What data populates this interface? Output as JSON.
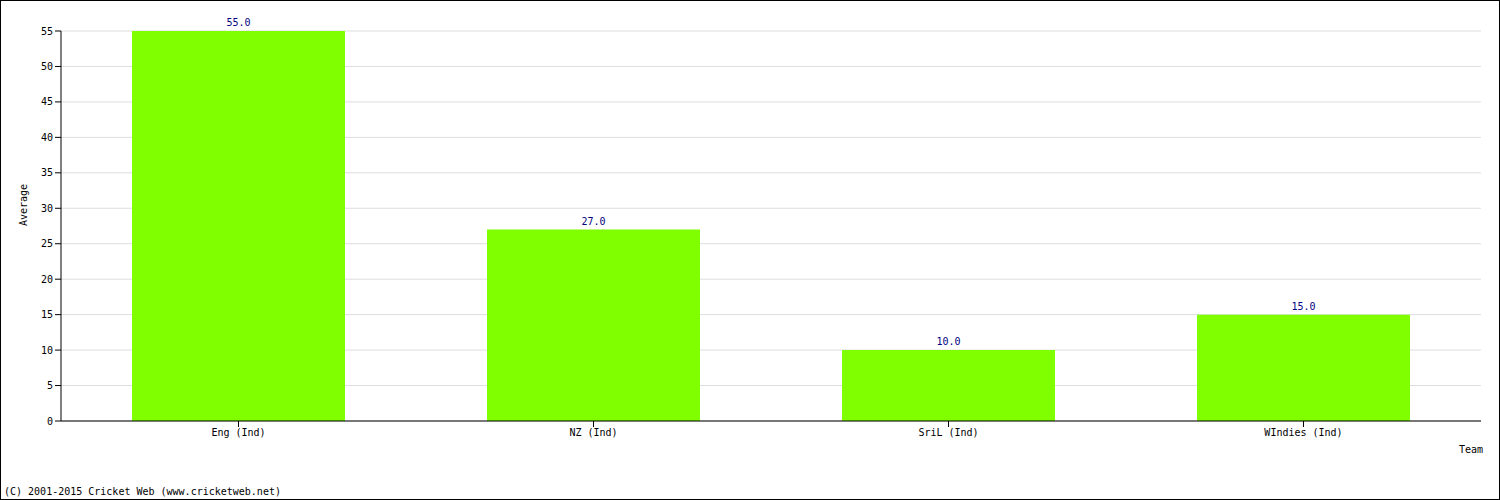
{
  "chart_data": {
    "type": "bar",
    "categories": [
      "Eng (Ind)",
      "NZ (Ind)",
      "SriL (Ind)",
      "WIndies (Ind)"
    ],
    "values": [
      55,
      27,
      10,
      15
    ],
    "value_labels": [
      "55.0",
      "27.0",
      "10.0",
      "15.0"
    ],
    "data_labels": true,
    "color": "#80ff00",
    "ylim": [
      0,
      55
    ],
    "yticks": [
      0,
      5,
      10,
      15,
      20,
      25,
      30,
      35,
      40,
      45,
      50,
      55
    ],
    "grid": true,
    "xlabel": "Team",
    "ylabel": "Average",
    "annotations": [
      "(C) 2001-2015 Cricket Web (www.cricketweb.net)"
    ]
  }
}
